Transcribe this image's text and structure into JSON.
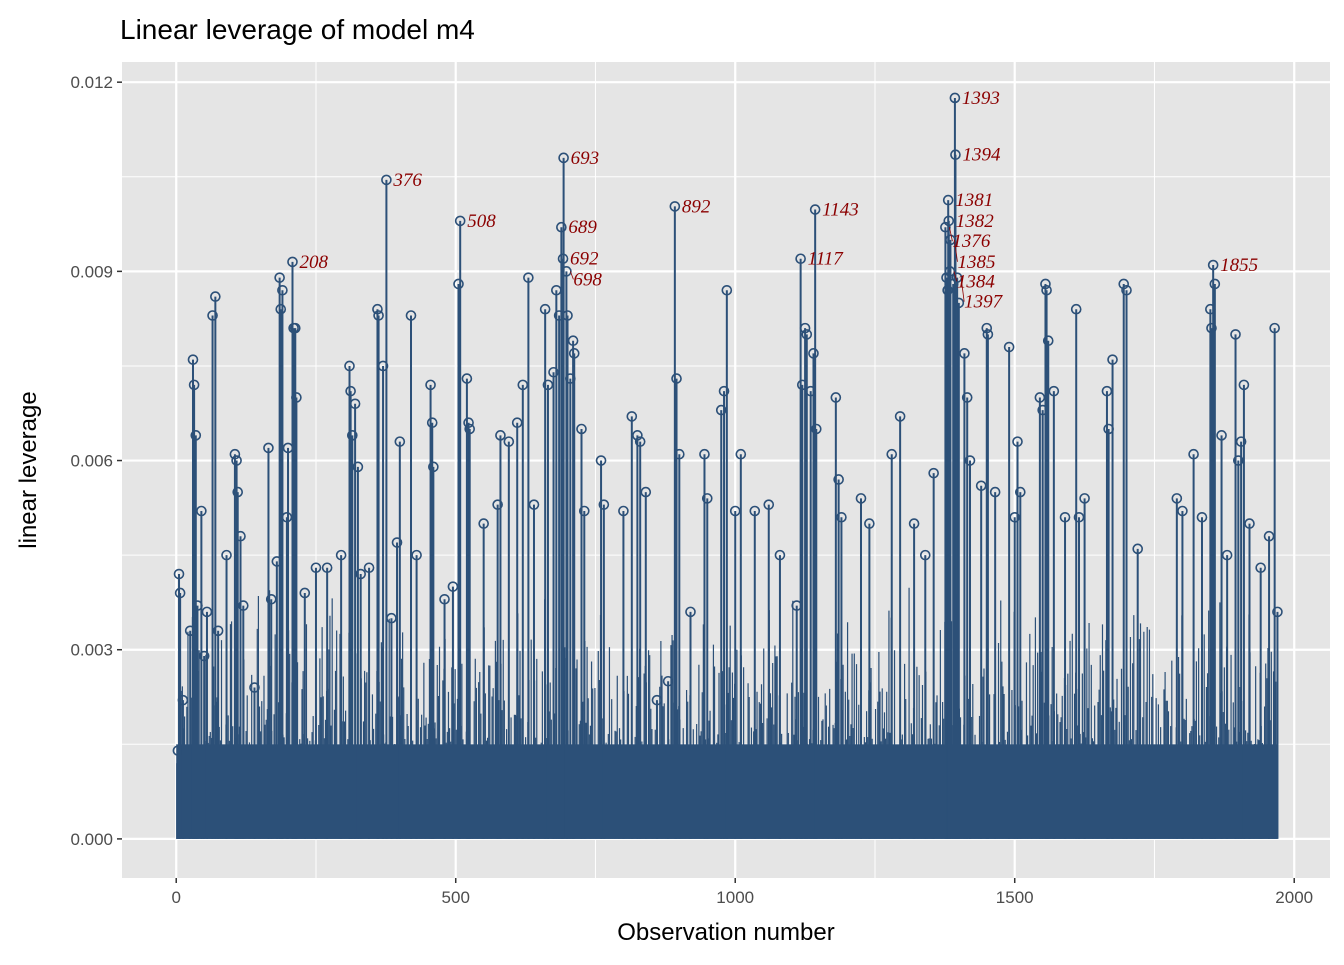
{
  "chart_data": {
    "type": "scatter",
    "style": "lollipop (vertical segments from 0 with open circles)",
    "title": "Linear leverage of model m4",
    "xlabel": "Observation number",
    "ylabel": "linear leverage",
    "xlim": [
      -97,
      2064
    ],
    "ylim": [
      -0.00062,
      0.01232
    ],
    "xticks": [
      0,
      500,
      1000,
      1500,
      2000
    ],
    "xtick_labels": [
      "0",
      "500",
      "1000",
      "1500",
      "2000"
    ],
    "yticks": [
      0,
      0.003,
      0.006,
      0.009,
      0.012
    ],
    "ytick_labels": [
      "0.000",
      "0.003",
      "0.006",
      "0.009",
      "0.012"
    ],
    "grid": true,
    "colors": {
      "panel": "#e5e5e5",
      "grid": "#ffffff",
      "points": "#2c5078",
      "labels": "#8b0000"
    },
    "labeled_points": [
      {
        "label": "1393",
        "x": 1393,
        "y": 0.01175
      },
      {
        "label": "1394",
        "x": 1394,
        "y": 0.01085
      },
      {
        "label": "693",
        "x": 693,
        "y": 0.0108
      },
      {
        "label": "376",
        "x": 376,
        "y": 0.01045
      },
      {
        "label": "1381",
        "x": 1381,
        "y": 0.01013
      },
      {
        "label": "892",
        "x": 892,
        "y": 0.01003
      },
      {
        "label": "1143",
        "x": 1143,
        "y": 0.00998
      },
      {
        "label": "508",
        "x": 508,
        "y": 0.0098
      },
      {
        "label": "1382",
        "x": 1382,
        "y": 0.0098
      },
      {
        "label": "1376",
        "x": 1376,
        "y": 0.0097
      },
      {
        "label": "689",
        "x": 689,
        "y": 0.0097
      },
      {
        "label": "1385",
        "x": 1385,
        "y": 0.0095
      },
      {
        "label": "208",
        "x": 208,
        "y": 0.00915
      },
      {
        "label": "1117",
        "x": 1117,
        "y": 0.0092
      },
      {
        "label": "692",
        "x": 692,
        "y": 0.0092
      },
      {
        "label": "1855",
        "x": 1855,
        "y": 0.0091
      },
      {
        "label": "698",
        "x": 698,
        "y": 0.009
      },
      {
        "label": "1384",
        "x": 1384,
        "y": 0.009
      },
      {
        "label": "1397",
        "x": 1397,
        "y": 0.0089
      }
    ],
    "points": [
      [
        3,
        0.0014
      ],
      [
        5,
        0.0042
      ],
      [
        7,
        0.0039
      ],
      [
        12,
        0.0022
      ],
      [
        25,
        0.0033
      ],
      [
        30,
        0.0076
      ],
      [
        32,
        0.0072
      ],
      [
        35,
        0.0064
      ],
      [
        38,
        0.0037
      ],
      [
        45,
        0.0052
      ],
      [
        50,
        0.0029
      ],
      [
        55,
        0.0036
      ],
      [
        65,
        0.0083
      ],
      [
        70,
        0.0086
      ],
      [
        75,
        0.0033
      ],
      [
        90,
        0.0045
      ],
      [
        105,
        0.0061
      ],
      [
        108,
        0.006
      ],
      [
        110,
        0.0055
      ],
      [
        115,
        0.0048
      ],
      [
        120,
        0.0037
      ],
      [
        140,
        0.0024
      ],
      [
        165,
        0.0062
      ],
      [
        170,
        0.0038
      ],
      [
        180,
        0.0044
      ],
      [
        185,
        0.0089
      ],
      [
        187,
        0.0084
      ],
      [
        190,
        0.0087
      ],
      [
        198,
        0.0051
      ],
      [
        200,
        0.0062
      ],
      [
        210,
        0.0081
      ],
      [
        213,
        0.0081
      ],
      [
        215,
        0.007
      ],
      [
        230,
        0.0039
      ],
      [
        250,
        0.0043
      ],
      [
        270,
        0.0043
      ],
      [
        295,
        0.0045
      ],
      [
        310,
        0.0075
      ],
      [
        312,
        0.0071
      ],
      [
        315,
        0.0064
      ],
      [
        320,
        0.0069
      ],
      [
        325,
        0.0059
      ],
      [
        330,
        0.0042
      ],
      [
        345,
        0.0043
      ],
      [
        360,
        0.0084
      ],
      [
        362,
        0.0083
      ],
      [
        370,
        0.0075
      ],
      [
        385,
        0.0035
      ],
      [
        395,
        0.0047
      ],
      [
        400,
        0.0063
      ],
      [
        420,
        0.0083
      ],
      [
        430,
        0.0045
      ],
      [
        455,
        0.0072
      ],
      [
        458,
        0.0066
      ],
      [
        460,
        0.0059
      ],
      [
        480,
        0.0038
      ],
      [
        495,
        0.004
      ],
      [
        505,
        0.0088
      ],
      [
        520,
        0.0073
      ],
      [
        523,
        0.0066
      ],
      [
        525,
        0.0065
      ],
      [
        550,
        0.005
      ],
      [
        575,
        0.0053
      ],
      [
        580,
        0.0064
      ],
      [
        595,
        0.0063
      ],
      [
        610,
        0.0066
      ],
      [
        620,
        0.0072
      ],
      [
        630,
        0.0089
      ],
      [
        640,
        0.0053
      ],
      [
        660,
        0.0084
      ],
      [
        665,
        0.0072
      ],
      [
        675,
        0.0074
      ],
      [
        680,
        0.0087
      ],
      [
        685,
        0.0083
      ],
      [
        700,
        0.0083
      ],
      [
        705,
        0.0073
      ],
      [
        710,
        0.0079
      ],
      [
        712,
        0.0077
      ],
      [
        725,
        0.0065
      ],
      [
        730,
        0.0052
      ],
      [
        760,
        0.006
      ],
      [
        765,
        0.0053
      ],
      [
        800,
        0.0052
      ],
      [
        815,
        0.0067
      ],
      [
        825,
        0.0064
      ],
      [
        830,
        0.0063
      ],
      [
        840,
        0.0055
      ],
      [
        860,
        0.0022
      ],
      [
        880,
        0.0025
      ],
      [
        895,
        0.0073
      ],
      [
        900,
        0.0061
      ],
      [
        920,
        0.0036
      ],
      [
        945,
        0.0061
      ],
      [
        950,
        0.0054
      ],
      [
        975,
        0.0068
      ],
      [
        980,
        0.0071
      ],
      [
        985,
        0.0087
      ],
      [
        1000,
        0.0052
      ],
      [
        1010,
        0.0061
      ],
      [
        1035,
        0.0052
      ],
      [
        1060,
        0.0053
      ],
      [
        1080,
        0.0045
      ],
      [
        1110,
        0.0037
      ],
      [
        1120,
        0.0072
      ],
      [
        1125,
        0.0081
      ],
      [
        1128,
        0.008
      ],
      [
        1135,
        0.0071
      ],
      [
        1140,
        0.0077
      ],
      [
        1145,
        0.0065
      ],
      [
        1180,
        0.007
      ],
      [
        1185,
        0.0057
      ],
      [
        1190,
        0.0051
      ],
      [
        1225,
        0.0054
      ],
      [
        1240,
        0.005
      ],
      [
        1280,
        0.0061
      ],
      [
        1295,
        0.0067
      ],
      [
        1320,
        0.005
      ],
      [
        1340,
        0.0045
      ],
      [
        1355,
        0.0058
      ],
      [
        1378,
        0.0089
      ],
      [
        1380,
        0.0087
      ],
      [
        1390,
        0.0088
      ],
      [
        1400,
        0.0085
      ],
      [
        1410,
        0.0077
      ],
      [
        1415,
        0.007
      ],
      [
        1420,
        0.006
      ],
      [
        1440,
        0.0056
      ],
      [
        1450,
        0.0081
      ],
      [
        1452,
        0.008
      ],
      [
        1465,
        0.0055
      ],
      [
        1490,
        0.0078
      ],
      [
        1500,
        0.0051
      ],
      [
        1505,
        0.0063
      ],
      [
        1510,
        0.0055
      ],
      [
        1545,
        0.007
      ],
      [
        1550,
        0.0068
      ],
      [
        1555,
        0.0088
      ],
      [
        1557,
        0.0087
      ],
      [
        1560,
        0.0079
      ],
      [
        1570,
        0.0071
      ],
      [
        1590,
        0.0051
      ],
      [
        1610,
        0.0084
      ],
      [
        1615,
        0.0051
      ],
      [
        1625,
        0.0054
      ],
      [
        1665,
        0.0071
      ],
      [
        1668,
        0.0065
      ],
      [
        1675,
        0.0076
      ],
      [
        1695,
        0.0088
      ],
      [
        1700,
        0.0087
      ],
      [
        1720,
        0.0046
      ],
      [
        1790,
        0.0054
      ],
      [
        1800,
        0.0052
      ],
      [
        1820,
        0.0061
      ],
      [
        1835,
        0.0051
      ],
      [
        1850,
        0.0084
      ],
      [
        1852,
        0.0081
      ],
      [
        1858,
        0.0088
      ],
      [
        1870,
        0.0064
      ],
      [
        1880,
        0.0045
      ],
      [
        1895,
        0.008
      ],
      [
        1900,
        0.006
      ],
      [
        1905,
        0.0063
      ],
      [
        1910,
        0.0072
      ],
      [
        1920,
        0.005
      ],
      [
        1940,
        0.0043
      ],
      [
        1955,
        0.0048
      ],
      [
        1965,
        0.0081
      ],
      [
        1970,
        0.0036
      ]
    ]
  }
}
